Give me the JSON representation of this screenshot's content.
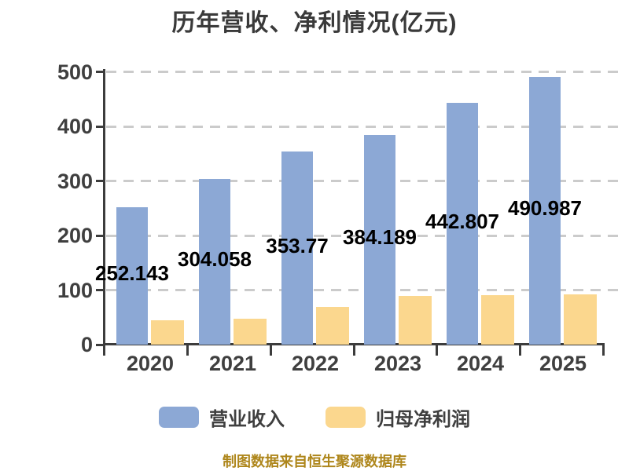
{
  "title": "历年营收、净利情况(亿元)",
  "footer": "制图数据来自恒生聚源数据库",
  "legend": [
    {
      "label": "营业收入"
    },
    {
      "label": "归母净利润"
    }
  ],
  "colors": {
    "revenue": "#8CA8D5",
    "profit": "#FBD78E",
    "grid": "#CBCBCB",
    "axis": "#3C3C3C",
    "tick_label": "#3F3F3F",
    "value_label": "#000000",
    "title": "#3A3A3A",
    "footer": "#AE861B"
  },
  "chart_data": {
    "type": "bar",
    "title": "历年营收、净利情况(亿元)",
    "categories": [
      "2020",
      "2021",
      "2022",
      "2023",
      "2024",
      "2025"
    ],
    "series": [
      {
        "name": "营业收入",
        "values": [
          252.143,
          304.058,
          353.77,
          384.189,
          442.807,
          490.987
        ],
        "labels": [
          "252.143",
          "304.058",
          "353.77",
          "384.189",
          "442.807",
          "490.987"
        ],
        "color": "#8CA8D5"
      },
      {
        "name": "归母净利润",
        "values": [
          44.5,
          48,
          69,
          89,
          90,
          92.5
        ],
        "labels": [],
        "color": "#FBD78E"
      }
    ],
    "xlabel": "",
    "ylabel": "",
    "ylim": [
      0,
      500
    ],
    "yticks": [
      0,
      100,
      200,
      300,
      400,
      500
    ],
    "grid": "horizontal-dashed",
    "legend_position": "bottom"
  }
}
